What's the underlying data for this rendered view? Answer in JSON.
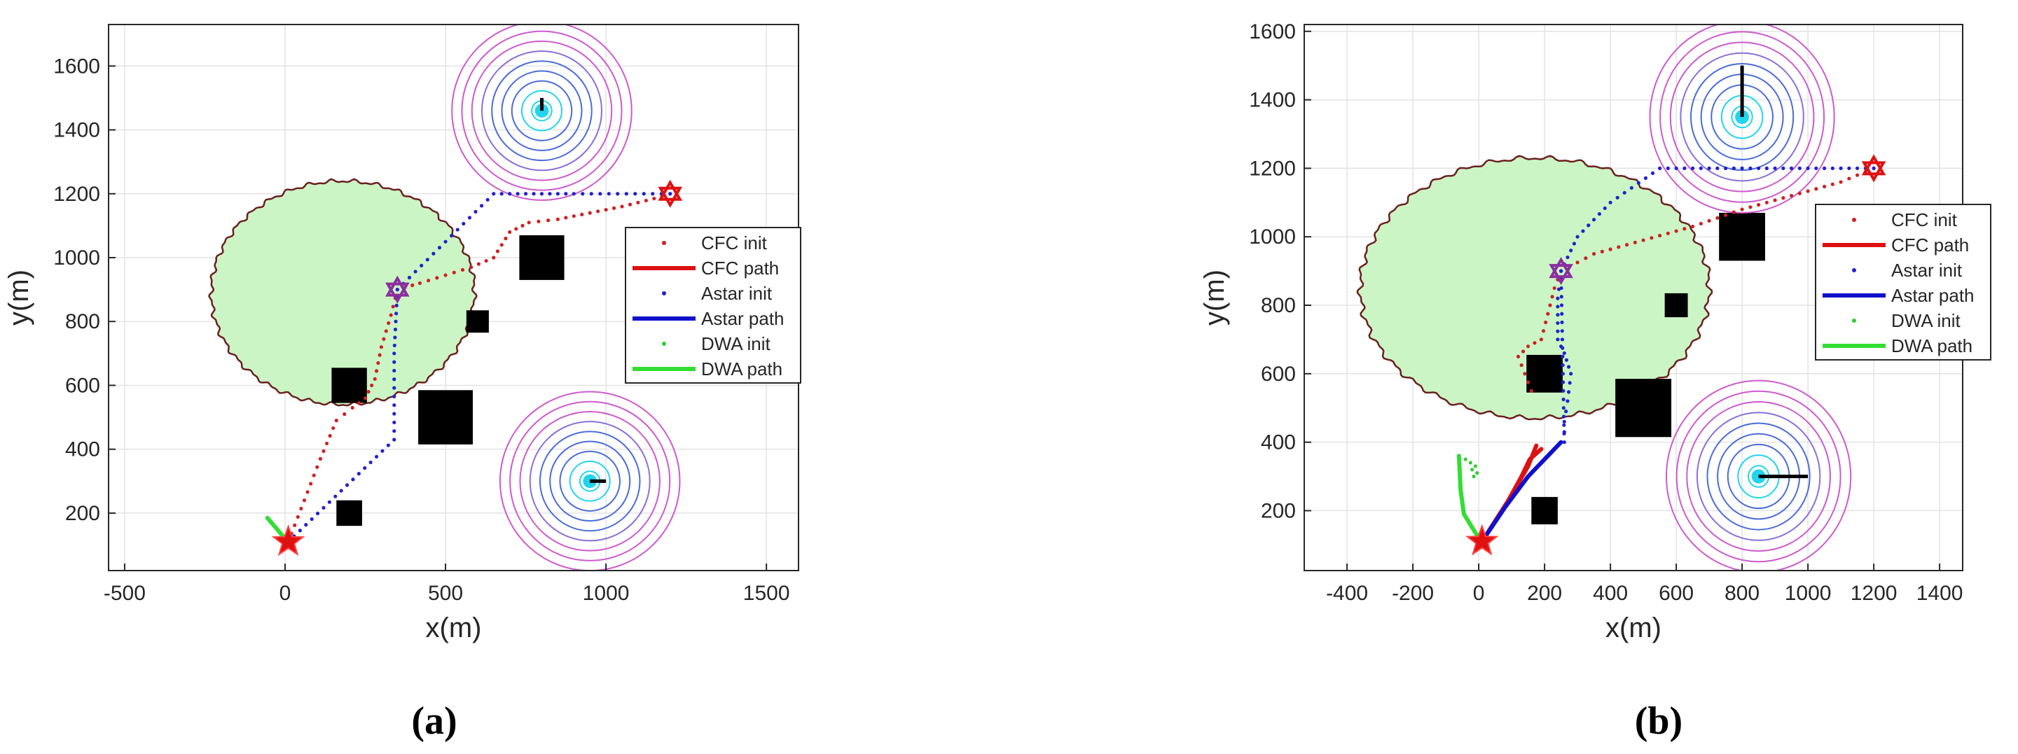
{
  "chart_data": [
    {
      "panel_label": "(a)",
      "type": "scatter",
      "xlabel": "x(m)",
      "ylabel": "y(m)",
      "xlim": [
        -550,
        1600
      ],
      "ylim": [
        20,
        1730
      ],
      "xticks": [
        -500,
        0,
        500,
        1000,
        1500
      ],
      "yticks": [
        200,
        400,
        600,
        800,
        1000,
        1200,
        1400,
        1600
      ],
      "grid": true,
      "legend_position": "right",
      "legend": [
        {
          "label": "CFC init",
          "style": "dots",
          "color": "#cc2222"
        },
        {
          "label": "CFC path",
          "style": "line",
          "color": "#dd1111"
        },
        {
          "label": "Astar init",
          "style": "dots",
          "color": "#2222cc"
        },
        {
          "label": "Astar path",
          "style": "line",
          "color": "#1111cc"
        },
        {
          "label": "DWA init",
          "style": "dots",
          "color": "#33cc33"
        },
        {
          "label": "DWA path",
          "style": "line",
          "color": "#33dd33"
        }
      ],
      "start": [
        10,
        110
      ],
      "goal": [
        1200,
        1200
      ],
      "waypoint": [
        350,
        900
      ],
      "threat_zone": {
        "center": [
          180,
          890
        ],
        "rx": 410,
        "ry": 350
      },
      "obstacles": [
        {
          "center": [
            800,
            1000
          ],
          "size": 140
        },
        {
          "center": [
            600,
            800
          ],
          "size": 70
        },
        {
          "center": [
            200,
            600
          ],
          "size": 110
        },
        {
          "center": [
            500,
            500
          ],
          "size": 170
        },
        {
          "center": [
            200,
            200
          ],
          "size": 80
        }
      ],
      "radars": [
        {
          "center": [
            800,
            1460
          ],
          "radius": 280,
          "heading": [
            800,
            1500
          ]
        },
        {
          "center": [
            950,
            300
          ],
          "radius": 280,
          "heading": [
            1000,
            300
          ]
        }
      ],
      "series": [
        {
          "kind": "CFC init",
          "x": [
            10,
            60,
            110,
            160,
            210,
            250,
            280,
            300,
            330,
            350,
            420,
            500,
            580,
            650,
            700,
            760,
            850,
            950,
            1050,
            1150,
            1200
          ],
          "y": [
            110,
            240,
            370,
            490,
            530,
            560,
            620,
            720,
            820,
            900,
            920,
            945,
            970,
            1000,
            1080,
            1110,
            1120,
            1140,
            1160,
            1185,
            1200
          ]
        },
        {
          "kind": "Astar init",
          "x": [
            10,
            340,
            340,
            350,
            500,
            650,
            900,
            1200
          ],
          "y": [
            110,
            430,
            700,
            900,
            1050,
            1200,
            1200,
            1200
          ]
        },
        {
          "kind": "DWA path",
          "x": [
            -55,
            0
          ],
          "y": [
            185,
            120
          ]
        }
      ]
    },
    {
      "panel_label": "(b)",
      "type": "scatter",
      "xlabel": "x(m)",
      "ylabel": "y(m)",
      "xlim": [
        -530,
        1470
      ],
      "ylim": [
        25,
        1620
      ],
      "xticks": [
        -400,
        -200,
        0,
        200,
        400,
        600,
        800,
        1000,
        1200,
        1400
      ],
      "yticks": [
        200,
        400,
        600,
        800,
        1000,
        1200,
        1400,
        1600
      ],
      "grid": true,
      "legend_position": "right",
      "legend": [
        {
          "label": "CFC init",
          "style": "dots",
          "color": "#cc2222"
        },
        {
          "label": "CFC path",
          "style": "line",
          "color": "#dd1111"
        },
        {
          "label": "Astar init",
          "style": "dots",
          "color": "#2222cc"
        },
        {
          "label": "Astar path",
          "style": "line",
          "color": "#1111cc"
        },
        {
          "label": "DWA init",
          "style": "dots",
          "color": "#33cc33"
        },
        {
          "label": "DWA path",
          "style": "line",
          "color": "#33dd33"
        }
      ],
      "start": [
        10,
        110
      ],
      "goal": [
        1200,
        1200
      ],
      "waypoint": [
        250,
        900
      ],
      "threat_zone": {
        "center": [
          170,
          850
        ],
        "rx": 530,
        "ry": 380
      },
      "obstacles": [
        {
          "center": [
            800,
            1000
          ],
          "size": 140
        },
        {
          "center": [
            600,
            800
          ],
          "size": 70
        },
        {
          "center": [
            200,
            600
          ],
          "size": 110
        },
        {
          "center": [
            500,
            500
          ],
          "size": 170
        },
        {
          "center": [
            200,
            200
          ],
          "size": 80
        }
      ],
      "radars": [
        {
          "center": [
            800,
            1350
          ],
          "radius": 280,
          "heading": [
            800,
            1500
          ]
        },
        {
          "center": [
            850,
            300
          ],
          "radius": 280,
          "heading": [
            1000,
            300
          ]
        }
      ],
      "series": [
        {
          "kind": "CFC init",
          "x": [
            160,
            140,
            120,
            150,
            190,
            230,
            250,
            350,
            500,
            650,
            800,
            950,
            1100,
            1200
          ],
          "y": [
            550,
            600,
            650,
            680,
            700,
            850,
            900,
            950,
            990,
            1030,
            1080,
            1120,
            1160,
            1200
          ]
        },
        {
          "kind": "Astar init",
          "x": [
            250,
            240,
            240,
            260,
            280,
            270,
            260,
            260,
            250,
            300,
            400,
            550,
            700,
            900,
            1100,
            1200
          ],
          "y": [
            900,
            820,
            700,
            660,
            600,
            520,
            460,
            400,
            900,
            1000,
            1100,
            1200,
            1200,
            1200,
            1200,
            1200
          ]
        },
        {
          "kind": "DWA init",
          "x": [
            -40,
            -25,
            -10,
            -20,
            -5,
            -15
          ],
          "y": [
            350,
            340,
            330,
            320,
            310,
            300
          ]
        },
        {
          "kind": "CFC path",
          "x": [
            10,
            90,
            150,
            175
          ],
          "y": [
            110,
            230,
            330,
            390
          ]
        },
        {
          "kind": "CFC path",
          "x": [
            90,
            130,
            155,
            190
          ],
          "y": [
            230,
            300,
            350,
            380
          ]
        },
        {
          "kind": "Astar path",
          "x": [
            10,
            80,
            150,
            250
          ],
          "y": [
            110,
            210,
            300,
            400
          ]
        },
        {
          "kind": "DWA path",
          "x": [
            0,
            -45,
            -55,
            -60
          ],
          "y": [
            120,
            190,
            260,
            360
          ]
        }
      ]
    }
  ]
}
